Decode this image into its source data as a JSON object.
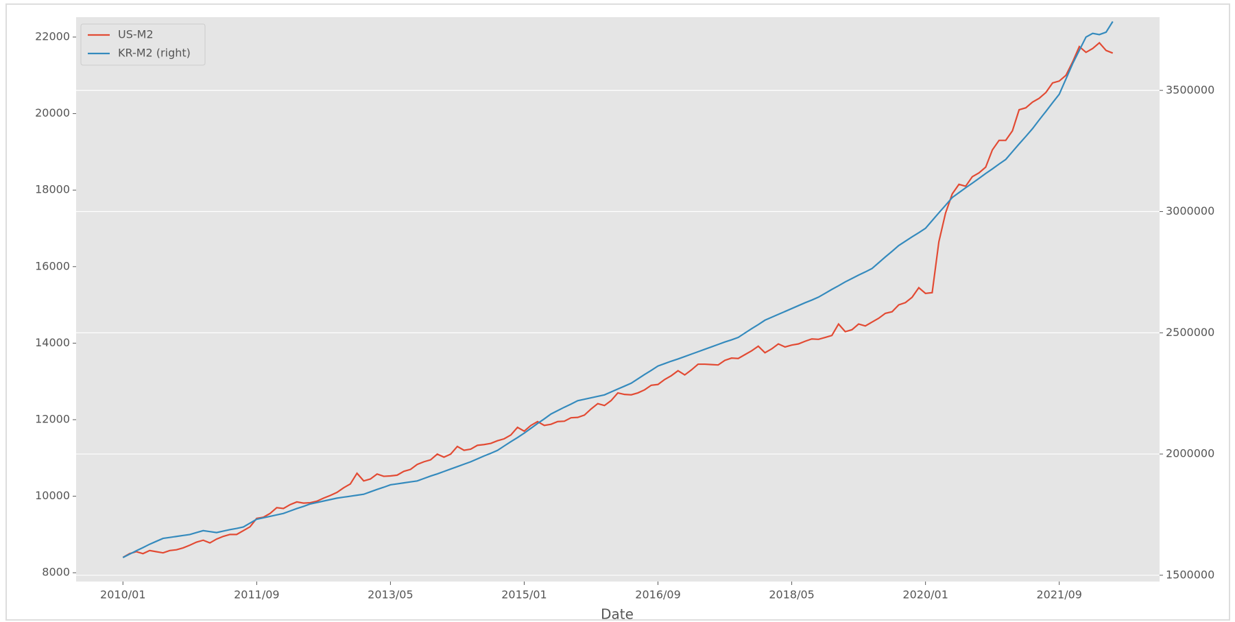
{
  "chart_data": {
    "type": "line",
    "xlabel": "Date",
    "x": [
      "2010/01",
      "2010/02",
      "2010/03",
      "2010/04",
      "2010/05",
      "2010/06",
      "2010/07",
      "2010/08",
      "2010/09",
      "2010/10",
      "2010/11",
      "2010/12",
      "2011/01",
      "2011/02",
      "2011/03",
      "2011/04",
      "2011/05",
      "2011/06",
      "2011/07",
      "2011/08",
      "2011/09",
      "2011/10",
      "2011/11",
      "2011/12",
      "2012/01",
      "2012/02",
      "2012/03",
      "2012/04",
      "2012/05",
      "2012/06",
      "2012/07",
      "2012/08",
      "2012/09",
      "2012/10",
      "2012/11",
      "2012/12",
      "2013/01",
      "2013/02",
      "2013/03",
      "2013/04",
      "2013/05",
      "2013/06",
      "2013/07",
      "2013/08",
      "2013/09",
      "2013/10",
      "2013/11",
      "2013/12",
      "2014/01",
      "2014/02",
      "2014/03",
      "2014/04",
      "2014/05",
      "2014/06",
      "2014/07",
      "2014/08",
      "2014/09",
      "2014/10",
      "2014/11",
      "2014/12",
      "2015/01",
      "2015/02",
      "2015/03",
      "2015/04",
      "2015/05",
      "2015/06",
      "2015/07",
      "2015/08",
      "2015/09",
      "2015/10",
      "2015/11",
      "2015/12",
      "2016/01",
      "2016/02",
      "2016/03",
      "2016/04",
      "2016/05",
      "2016/06",
      "2016/07",
      "2016/08",
      "2016/09",
      "2016/10",
      "2016/11",
      "2016/12",
      "2017/01",
      "2017/02",
      "2017/03",
      "2017/04",
      "2017/05",
      "2017/06",
      "2017/07",
      "2017/08",
      "2017/09",
      "2017/10",
      "2017/11",
      "2017/12",
      "2018/01",
      "2018/02",
      "2018/03",
      "2018/04",
      "2018/05",
      "2018/06",
      "2018/07",
      "2018/08",
      "2018/09",
      "2018/10",
      "2018/11",
      "2018/12",
      "2019/01",
      "2019/02",
      "2019/03",
      "2019/04",
      "2019/05",
      "2019/06",
      "2019/07",
      "2019/08",
      "2019/09",
      "2019/10",
      "2019/11",
      "2019/12",
      "2020/01",
      "2020/02",
      "2020/03",
      "2020/04",
      "2020/05",
      "2020/06",
      "2020/07",
      "2020/08",
      "2020/09",
      "2020/10",
      "2020/11",
      "2020/12",
      "2021/01",
      "2021/02",
      "2021/03",
      "2021/04",
      "2021/05",
      "2021/06",
      "2021/07",
      "2021/08",
      "2021/09",
      "2021/10",
      "2021/11",
      "2021/12",
      "2022/01",
      "2022/02",
      "2022/03",
      "2022/04",
      "2022/05"
    ],
    "series": [
      {
        "name": "US-M2",
        "color": "#E24A33",
        "axis": "y",
        "values": [
          8400,
          8500,
          8550,
          8500,
          8580,
          8550,
          8520,
          8580,
          8600,
          8650,
          8720,
          8800,
          8850,
          8780,
          8880,
          8950,
          9000,
          9000,
          9100,
          9200,
          9420,
          9450,
          9550,
          9700,
          9680,
          9780,
          9850,
          9820,
          9830,
          9870,
          9950,
          10020,
          10100,
          10220,
          10320,
          10600,
          10400,
          10450,
          10580,
          10520,
          10530,
          10550,
          10650,
          10700,
          10830,
          10900,
          10950,
          11100,
          11020,
          11100,
          11300,
          11200,
          11230,
          11330,
          11350,
          11380,
          11450,
          11500,
          11600,
          11800,
          11700,
          11850,
          11950,
          11850,
          11880,
          11950,
          11960,
          12050,
          12060,
          12120,
          12280,
          12420,
          12370,
          12500,
          12700,
          12660,
          12650,
          12700,
          12780,
          12900,
          12920,
          13050,
          13150,
          13280,
          13170,
          13300,
          13450,
          13450,
          13440,
          13430,
          13550,
          13610,
          13600,
          13700,
          13800,
          13920,
          13750,
          13850,
          13980,
          13900,
          13950,
          13980,
          14050,
          14110,
          14100,
          14150,
          14200,
          14500,
          14300,
          14350,
          14500,
          14450,
          14550,
          14650,
          14780,
          14820,
          15000,
          15060,
          15200,
          15450,
          15300,
          15320,
          16650,
          17400,
          17900,
          18150,
          18100,
          18350,
          18450,
          18600,
          19050,
          19300,
          19300,
          19550,
          20100,
          20150,
          20300,
          20400,
          20550,
          20800,
          20850,
          21000,
          21350,
          21750,
          21600,
          21700,
          21850,
          21650,
          21580
        ]
      },
      {
        "name": "KR-M2 (right)",
        "color": "#348ABD",
        "axis": "y2",
        "values": [
          1573000,
          1587000,
          1601000,
          1614000,
          1628000,
          1640000,
          1652000,
          1656000,
          1660000,
          1664000,
          1668000,
          1676000,
          1684000,
          1680000,
          1676000,
          1682000,
          1688000,
          1693000,
          1699000,
          1715000,
          1731000,
          1737000,
          1743000,
          1749000,
          1755000,
          1765000,
          1775000,
          1784000,
          1794000,
          1800000,
          1806000,
          1812000,
          1818000,
          1822000,
          1826000,
          1830000,
          1834000,
          1844000,
          1854000,
          1863000,
          1873000,
          1877000,
          1881000,
          1885000,
          1889000,
          1899000,
          1909000,
          1918000,
          1928000,
          1938000,
          1948000,
          1958000,
          1968000,
          1980000,
          1992000,
          2003000,
          2015000,
          2033000,
          2051000,
          2068000,
          2086000,
          2106000,
          2126000,
          2145000,
          2165000,
          2179000,
          2193000,
          2206000,
          2220000,
          2226000,
          2232000,
          2238000,
          2244000,
          2256000,
          2268000,
          2280000,
          2292000,
          2310000,
          2328000,
          2345000,
          2363000,
          2373000,
          2383000,
          2392000,
          2402000,
          2412000,
          2422000,
          2432000,
          2442000,
          2452000,
          2462000,
          2471000,
          2481000,
          2499000,
          2517000,
          2534000,
          2552000,
          2564000,
          2576000,
          2588000,
          2600000,
          2612000,
          2624000,
          2635000,
          2647000,
          2663000,
          2679000,
          2694000,
          2710000,
          2724000,
          2738000,
          2751000,
          2765000,
          2789000,
          2813000,
          2836000,
          2860000,
          2878000,
          2896000,
          2913000,
          2931000,
          2963000,
          2995000,
          3026000,
          3058000,
          3078000,
          3098000,
          3117000,
          3137000,
          3157000,
          3176000,
          3196000,
          3215000,
          3247000,
          3279000,
          3310000,
          3342000,
          3378000,
          3413000,
          3449000,
          3484000,
          3547000,
          3610000,
          3665000,
          3720000,
          3735000,
          3730000,
          3740000,
          3784000
        ]
      }
    ],
    "xlim": [
      "2009/06",
      "2022/12"
    ],
    "xticks": [
      "2010/01",
      "2011/09",
      "2013/05",
      "2015/01",
      "2016/09",
      "2018/05",
      "2020/01",
      "2021/09"
    ],
    "ylim": [
      7770,
      22520
    ],
    "yticks": [
      8000,
      10000,
      12000,
      14000,
      16000,
      18000,
      20000,
      22000
    ],
    "y2lim": [
      1474000,
      3802000
    ],
    "y2ticks": [
      1500000,
      2000000,
      2500000,
      3000000,
      3500000
    ],
    "grid": "y2",
    "legend": "upper left",
    "background": "#E5E5E5"
  }
}
